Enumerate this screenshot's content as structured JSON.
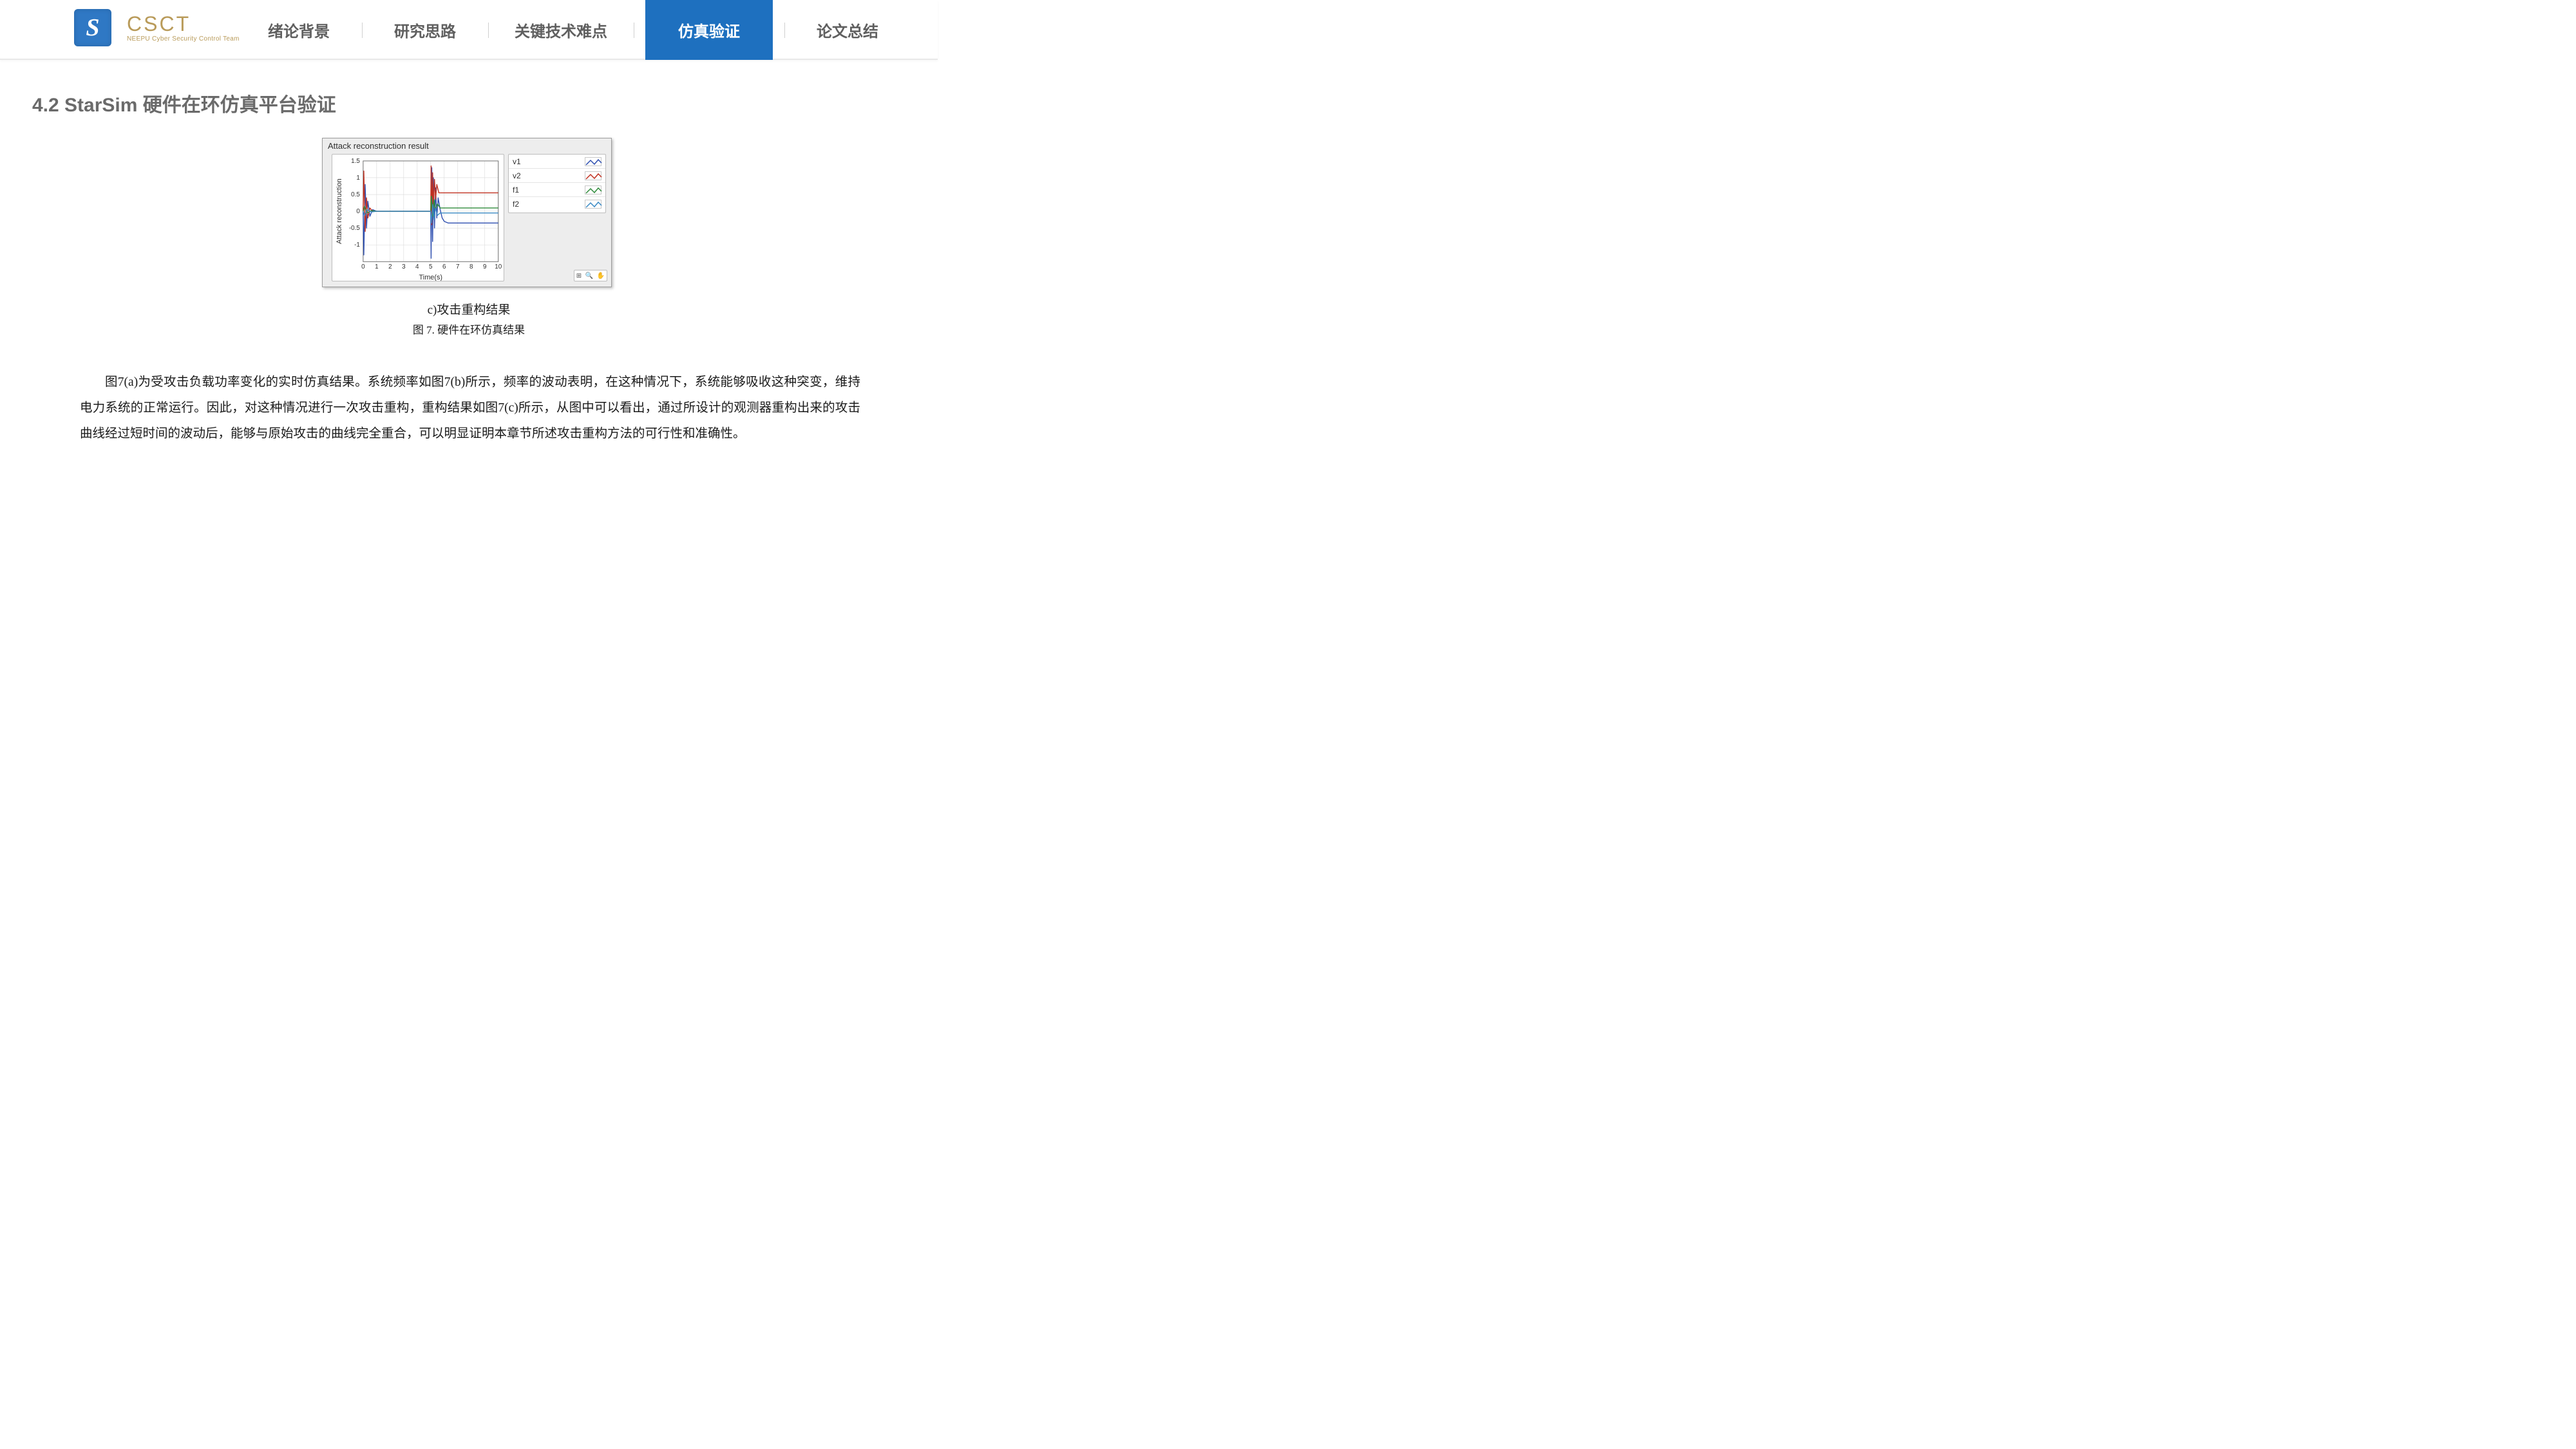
{
  "brand": {
    "logo_glyph": "S",
    "title": "CSCT",
    "subtitle": "NEEPU Cyber Security Control Team",
    "logo_bg": "#2f78c4",
    "brand_color": "#b99b5a"
  },
  "nav": {
    "items": [
      {
        "label": "绪论背景",
        "active": false
      },
      {
        "label": "研究思路",
        "active": false
      },
      {
        "label": "关键技术难点",
        "active": false,
        "wide": true
      },
      {
        "label": "仿真验证",
        "active": true
      },
      {
        "label": "论文总结",
        "active": false
      }
    ],
    "active_bg": "#1e70bf",
    "inactive_color": "#5f5f5f"
  },
  "section": {
    "title": "4.2 StarSim 硬件在环仿真平台验证"
  },
  "chart": {
    "panel_title": "Attack reconstruction result",
    "xlabel": "Time(s)",
    "ylabel": "Attack reconstruction",
    "xlim": [
      0,
      10
    ],
    "ylim": [
      -1.5,
      1.5
    ],
    "xticks": [
      0,
      1,
      2,
      3,
      4,
      5,
      6,
      7,
      8,
      9,
      10
    ],
    "yticks": [
      -1,
      -0.5,
      0,
      0.5,
      1,
      1.5
    ],
    "series": [
      {
        "name": "v1",
        "color": "#2e4fb0",
        "points": [
          [
            0,
            0
          ],
          [
            0.05,
            -1.3
          ],
          [
            0.15,
            0.8
          ],
          [
            0.25,
            -0.5
          ],
          [
            0.35,
            0.3
          ],
          [
            0.5,
            -0.15
          ],
          [
            0.7,
            0.05
          ],
          [
            1,
            0
          ],
          [
            5,
            0
          ],
          [
            5.03,
            -1.4
          ],
          [
            5.08,
            1.3
          ],
          [
            5.14,
            -0.9
          ],
          [
            5.2,
            1.0
          ],
          [
            5.28,
            -0.5
          ],
          [
            5.36,
            0.7
          ],
          [
            5.45,
            -0.2
          ],
          [
            5.55,
            0.4
          ],
          [
            5.7,
            0.05
          ],
          [
            5.85,
            -0.2
          ],
          [
            6.0,
            -0.3
          ],
          [
            6.3,
            -0.35
          ],
          [
            10,
            -0.35
          ]
        ]
      },
      {
        "name": "v2",
        "color": "#c03020",
        "points": [
          [
            0,
            0
          ],
          [
            0.05,
            1.2
          ],
          [
            0.15,
            -0.6
          ],
          [
            0.25,
            0.4
          ],
          [
            0.35,
            -0.2
          ],
          [
            0.5,
            0.1
          ],
          [
            0.7,
            0
          ],
          [
            1,
            0
          ],
          [
            5,
            0
          ],
          [
            5.03,
            1.35
          ],
          [
            5.08,
            -0.4
          ],
          [
            5.14,
            1.15
          ],
          [
            5.2,
            0.1
          ],
          [
            5.28,
            0.95
          ],
          [
            5.36,
            0.35
          ],
          [
            5.45,
            0.8
          ],
          [
            5.6,
            0.55
          ],
          [
            5.8,
            0.55
          ],
          [
            10,
            0.55
          ]
        ]
      },
      {
        "name": "f1",
        "color": "#2e8a3a",
        "points": [
          [
            0,
            0
          ],
          [
            0.1,
            0.15
          ],
          [
            0.3,
            -0.05
          ],
          [
            0.6,
            0.02
          ],
          [
            1,
            0
          ],
          [
            5,
            0
          ],
          [
            5.05,
            0.45
          ],
          [
            5.15,
            -0.15
          ],
          [
            5.25,
            0.35
          ],
          [
            5.35,
            0.05
          ],
          [
            5.5,
            0.22
          ],
          [
            5.7,
            0.1
          ],
          [
            6,
            0.1
          ],
          [
            10,
            0.1
          ]
        ]
      },
      {
        "name": "f2",
        "color": "#3a8ac4",
        "points": [
          [
            0,
            0
          ],
          [
            0.1,
            -0.12
          ],
          [
            0.3,
            0.05
          ],
          [
            0.6,
            -0.02
          ],
          [
            1,
            0
          ],
          [
            5,
            0
          ],
          [
            5.05,
            -0.35
          ],
          [
            5.15,
            0.2
          ],
          [
            5.25,
            -0.25
          ],
          [
            5.35,
            0.1
          ],
          [
            5.5,
            -0.12
          ],
          [
            5.7,
            -0.05
          ],
          [
            6,
            -0.05
          ],
          [
            10,
            -0.05
          ]
        ]
      }
    ],
    "legend": [
      "v1",
      "v2",
      "f1",
      "f2"
    ],
    "legend_colors": [
      "#2e4fb0",
      "#c03020",
      "#2e8a3a",
      "#3a8ac4"
    ],
    "background": "#ededed",
    "plot_bg": "#ffffff",
    "grid_color": "#d9d9d9",
    "axis_color": "#707070",
    "tick_font": 10,
    "label_font": 11
  },
  "captions": {
    "sub": "c)攻击重构结果",
    "main": "图 7. 硬件在环仿真结果"
  },
  "paragraph": "图7(a)为受攻击负载功率变化的实时仿真结果。系统频率如图7(b)所示，频率的波动表明，在这种情况下，系统能够吸收这种突变，维持电力系统的正常运行。因此，对这种情况进行一次攻击重构，重构结果如图7(c)所示，从图中可以看出，通过所设计的观测器重构出来的攻击曲线经过短时间的波动后，能够与原始攻击的曲线完全重合，可以明显证明本章节所述攻击重构方法的可行性和准确性。"
}
